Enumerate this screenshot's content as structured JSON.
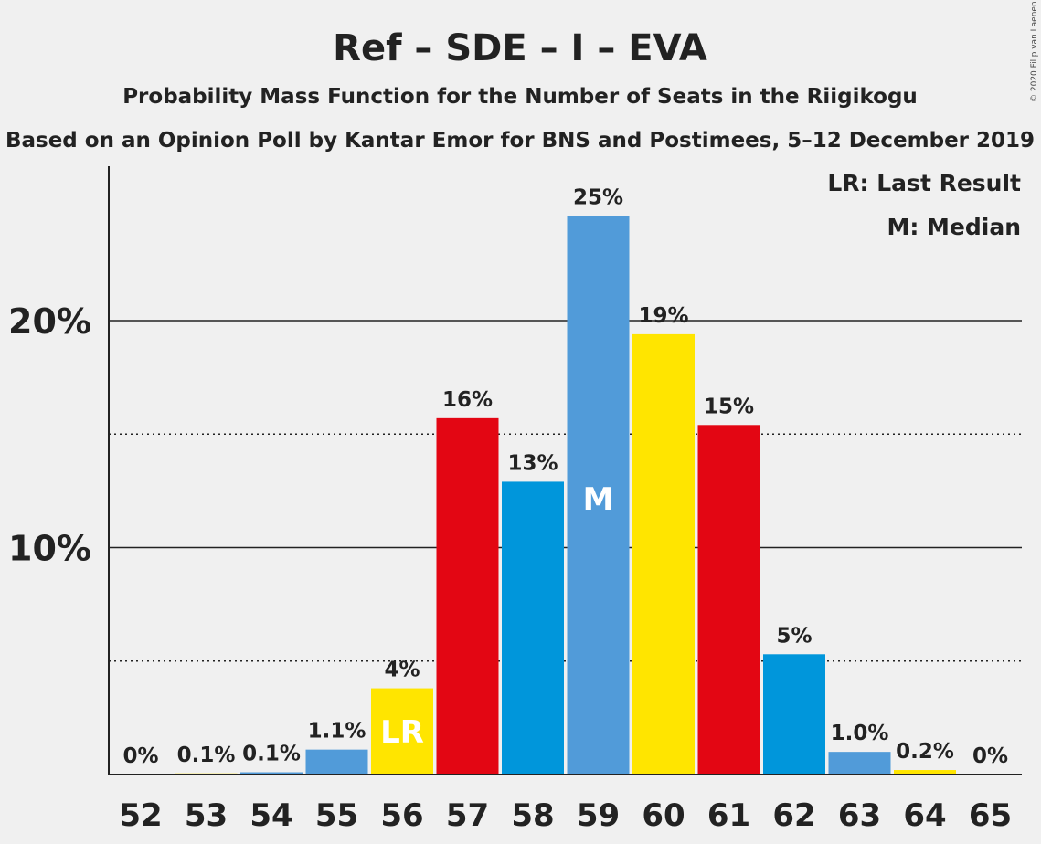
{
  "chart_data": {
    "type": "bar",
    "title": "Ref – SDE – I – EVA",
    "subtitle": "Probability Mass Function for the Number of Seats in the Riigikogu",
    "subtitle2": "Based on an Opinion Poll by Kantar Emor for BNS and Postimees, 5–12 December 2019",
    "copyright": "© 2020 Filip van Laenen",
    "legend": {
      "lr": "LR: Last Result",
      "m": "M: Median",
      "placement": "top-right"
    },
    "categories": [
      "52",
      "53",
      "54",
      "55",
      "56",
      "57",
      "58",
      "59",
      "60",
      "61",
      "62",
      "63",
      "64",
      "65"
    ],
    "values": [
      0,
      0.05,
      0.1,
      1.1,
      3.8,
      15.7,
      12.9,
      24.6,
      19.4,
      15.4,
      5.3,
      1.0,
      0.2,
      0
    ],
    "data_labels": [
      "0%",
      "0.1%",
      "0.1%",
      "1.1%",
      "4%",
      "16%",
      "13%",
      "25%",
      "19%",
      "15%",
      "5%",
      "1.0%",
      "0.2%",
      "0%"
    ],
    "bar_colors": [
      "#519BD9",
      "#FFE500",
      "#519BD9",
      "#519BD9",
      "#FFE500",
      "#E30613",
      "#0096DB",
      "#519BD9",
      "#FFE500",
      "#E30613",
      "#0096DB",
      "#519BD9",
      "#FFE500",
      "#519BD9"
    ],
    "markers": {
      "4": "LR",
      "7": "M"
    },
    "yticks": [
      {
        "value": 10,
        "label": "10%"
      },
      {
        "value": 20,
        "label": "20%"
      }
    ],
    "dotted_lines": [
      5,
      15
    ],
    "ylim": [
      0,
      26.8
    ],
    "grid": true
  }
}
